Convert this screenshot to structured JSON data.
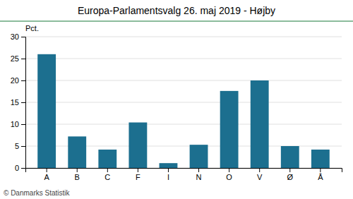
{
  "chart_data": {
    "type": "bar",
    "title": "Europa-Parlamentsvalg 26. maj 2019 - Højby",
    "ylabel": "Pct.",
    "footer": "© Danmarks Statistik",
    "categories": [
      "A",
      "B",
      "C",
      "F",
      "I",
      "N",
      "O",
      "V",
      "Ø",
      "Å"
    ],
    "values": [
      26.0,
      7.2,
      4.2,
      10.4,
      1.1,
      5.3,
      17.6,
      20.0,
      5.0,
      4.2
    ],
    "color": "#1c6f8f",
    "ylim": [
      0,
      30
    ],
    "yticks": [
      0,
      5,
      10,
      15,
      20,
      25,
      30
    ],
    "grid": true
  }
}
